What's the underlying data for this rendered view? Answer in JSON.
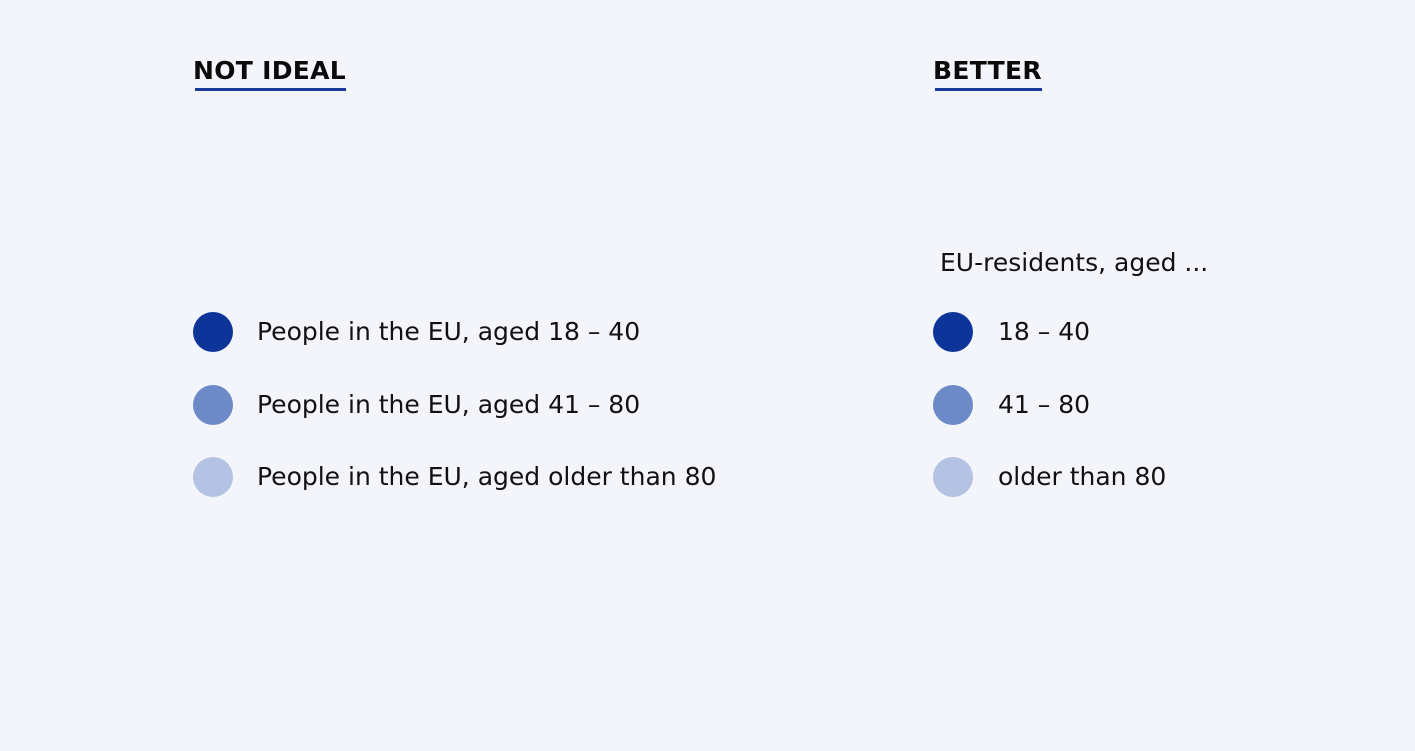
{
  "colors": {
    "background": "#f3f5fa",
    "heading_underline": "#1a3a9c",
    "series": [
      "#0d3599",
      "#6c89c8",
      "#b4c3e3"
    ]
  },
  "left_panel": {
    "heading": "NOT IDEAL",
    "items": [
      {
        "label": "People in the EU, aged 18 – 40",
        "color": "#0d3599"
      },
      {
        "label": "People in the EU, aged 41 – 80",
        "color": "#6c89c8"
      },
      {
        "label": "People in the EU, aged older than 80",
        "color": "#b4c3e3"
      }
    ]
  },
  "right_panel": {
    "heading": "BETTER",
    "legend_title": "EU-residents, aged ...",
    "items": [
      {
        "label": "18 – 40",
        "color": "#0d3599"
      },
      {
        "label": "41 – 80",
        "color": "#6c89c8"
      },
      {
        "label": "older than 80",
        "color": "#b4c3e3"
      }
    ]
  }
}
